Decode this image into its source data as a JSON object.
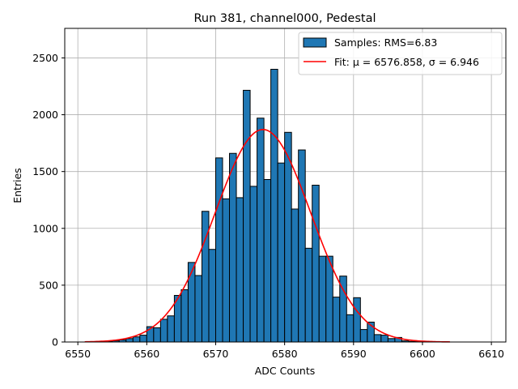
{
  "chart_data": {
    "type": "bar",
    "title": "Run 381, channel000, Pedestal",
    "xlabel": "ADC Counts",
    "ylabel": "Entries",
    "xlim": [
      6548.1,
      6612.1
    ],
    "ylim": [
      0,
      2760
    ],
    "x_ticks": [
      6550,
      6560,
      6570,
      6580,
      6590,
      6600,
      6610
    ],
    "y_ticks": [
      0,
      500,
      1000,
      1500,
      2000,
      2500
    ],
    "grid": true,
    "legend_position": "top-right",
    "bar_color": "#1f77b4",
    "fit_color": "#ff0000",
    "series": [
      {
        "name": "Samples: RMS=6.83",
        "kind": "histogram",
        "bin_left": [
          6553,
          6554,
          6555,
          6556,
          6557,
          6558,
          6559,
          6560,
          6561,
          6562,
          6563,
          6564,
          6565,
          6566,
          6567,
          6568,
          6569,
          6570,
          6571,
          6572,
          6573,
          6574,
          6575,
          6576,
          6577,
          6578,
          6579,
          6580,
          6581,
          6582,
          6583,
          6584,
          6585,
          6586,
          6587,
          6588,
          6589,
          6590,
          6591,
          6592,
          6593,
          6594,
          6595,
          6596,
          6597,
          6598,
          6599
        ],
        "bin_width": 1,
        "values": [
          3,
          5,
          10,
          18,
          30,
          45,
          60,
          135,
          125,
          200,
          230,
          410,
          460,
          700,
          585,
          1150,
          815,
          1620,
          1260,
          1660,
          1270,
          2215,
          1370,
          1970,
          1430,
          2400,
          1575,
          1845,
          1170,
          1690,
          825,
          1380,
          755,
          755,
          395,
          580,
          240,
          390,
          110,
          175,
          65,
          60,
          30,
          40,
          10,
          5,
          3
        ]
      },
      {
        "name": "Fit: μ = 6576.858, σ = 6.946",
        "kind": "gaussian",
        "mu": 6576.858,
        "sigma": 6.946,
        "peak": 1870,
        "x_range": [
          6551,
          6604
        ]
      }
    ]
  }
}
